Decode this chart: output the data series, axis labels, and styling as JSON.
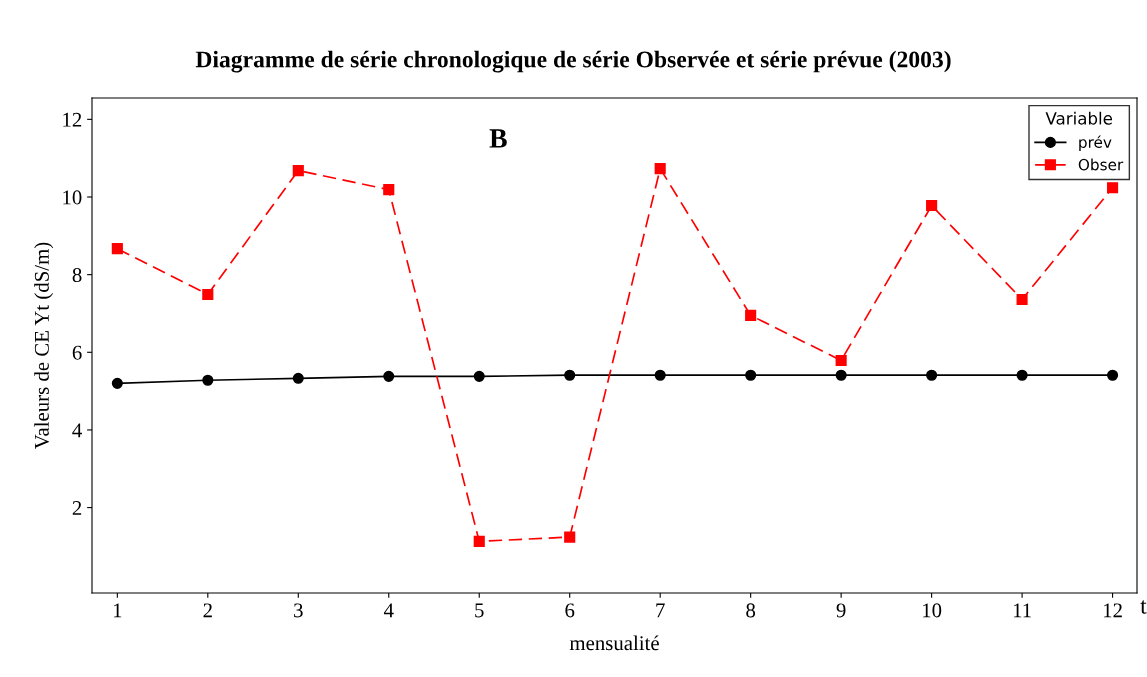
{
  "chart_data": {
    "type": "line",
    "title": "Diagramme de série chronologique de série Observée et série prévue (2003)",
    "xlabel": "mensualité",
    "ylabel": "Valeurs de CE Yt (dS/m)",
    "x": [
      1,
      2,
      3,
      4,
      5,
      6,
      7,
      8,
      9,
      10,
      11,
      12
    ],
    "series": [
      {
        "name": "prév",
        "color": "#000000",
        "marker": "circle",
        "line_style": "solid",
        "values": [
          5.2,
          5.28,
          5.33,
          5.38,
          5.38,
          5.41,
          5.41,
          5.41,
          5.41,
          5.41,
          5.41,
          5.41
        ]
      },
      {
        "name": "Obser",
        "color": "#ff0000",
        "marker": "square",
        "line_style": "dashed",
        "values": [
          8.67,
          7.49,
          10.68,
          10.19,
          1.13,
          1.24,
          10.73,
          6.95,
          5.79,
          9.78,
          7.36,
          10.24
        ]
      }
    ],
    "xlim": [
      0.72,
      12.27
    ],
    "xticks": [
      1,
      2,
      3,
      4,
      5,
      6,
      7,
      8,
      9,
      10,
      11,
      12
    ],
    "ylim": [
      -0.2,
      12.55
    ],
    "yticks": [
      2,
      4,
      6,
      8,
      10,
      12
    ],
    "legend": "top right",
    "legend_title": "Variable",
    "grid": false,
    "annotations": [
      "B",
      "t"
    ]
  }
}
